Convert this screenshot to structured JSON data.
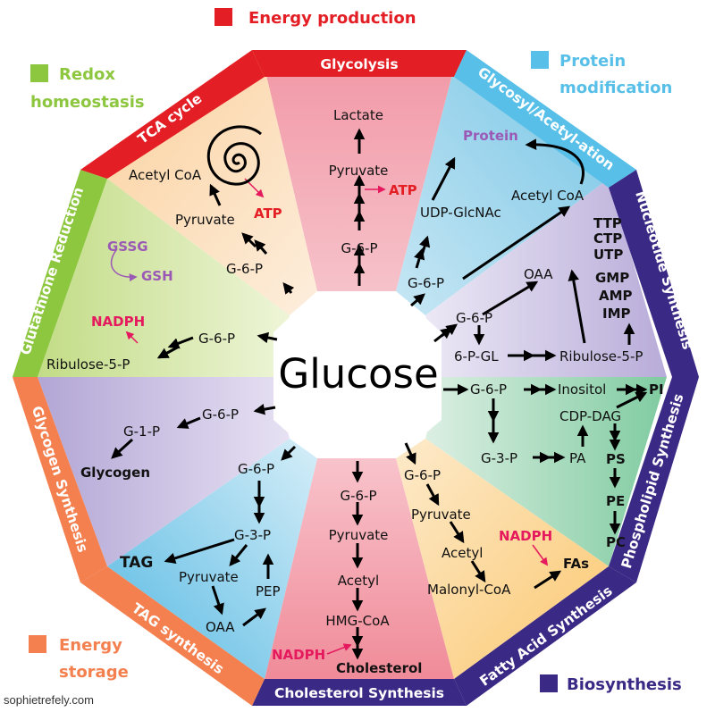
{
  "center": "Glucose",
  "credit": "sophietrefely.com",
  "categories": {
    "energy_production": {
      "label": "Energy production",
      "color": "#e31e24"
    },
    "redox": {
      "line1": "Redox",
      "line2": "homeostasis",
      "color": "#8dc63f"
    },
    "protein_mod": {
      "line1": "Protein",
      "line2": "modification",
      "color": "#58c0e8"
    },
    "energy_storage": {
      "line1": "Energy",
      "line2": "storage",
      "color": "#f47f4f"
    },
    "biosynthesis": {
      "label": "Biosynthesis",
      "color": "#3b2a85"
    }
  },
  "banners": {
    "glycolysis": "Glycolysis",
    "glycosyl": "Glycosyl/Acetyl-ation",
    "nucleotide": "Nucleotide Synthesis",
    "phospholipid": "Phospholipid Synthesis",
    "fatty": "Fatty Acid Synthesis",
    "cholesterol": "Cholesterol Synthesis",
    "tag": "TAG synthesis",
    "glycogen": "Glycogen Synthesis",
    "glutathione": "Glutathione Reduction",
    "tca": "TCA cycle"
  },
  "labels": {
    "gly_lactate": "Lactate",
    "gly_pyruvate": "Pyruvate",
    "gly_atp": "ATP",
    "gly_g6p": "G-6-P",
    "tca_acetyl": "Acetyl CoA",
    "tca_pyruvate": "Pyruvate",
    "tca_atp": "ATP",
    "tca_g6p": "G-6-P",
    "gsh_gssg": "GSSG",
    "gsh_gsh": "GSH",
    "gsh_nadph": "NADPH",
    "gsh_g6p": "G-6-P",
    "gsh_rib": "Ribulose-5-P",
    "glc_g6p": "G-6-P",
    "glc_g1p": "G-1-P",
    "glc_glycogen": "Glycogen",
    "tag_g6p": "G-6-P",
    "tag_g3p": "G-3-P",
    "tag_tag": "TAG",
    "tag_pyruvate": "Pyruvate",
    "tag_pep": "PEP",
    "tag_oaa": "OAA",
    "ch_g6p": "G-6-P",
    "ch_pyruvate": "Pyruvate",
    "ch_acetyl": "Acetyl",
    "ch_hmg": "HMG-CoA",
    "ch_nadph": "NADPH",
    "ch_chol": "Cholesterol",
    "fa_g6p": "G-6-P",
    "fa_pyruvate": "Pyruvate",
    "fa_acetyl": "Acetyl",
    "fa_nadph": "NADPH",
    "fa_malonyl": "Malonyl-CoA",
    "fa_fas": "FAs",
    "pl_g6p": "G-6-P",
    "pl_inositol": "Inositol",
    "pl_pi": "PI",
    "pl_cdpdag": "CDP-DAG",
    "pl_g3p": "G-3-P",
    "pl_pa": "PA",
    "pl_ps": "PS",
    "pl_pe": "PE",
    "pl_pc": "PC",
    "nt_oaa": "OAA",
    "nt_g6p": "G-6-P",
    "nt_6pgl": "6-P-GL",
    "nt_rib": "Ribulose-5-P",
    "nt_ttp": "TTP",
    "nt_ctp": "CTP",
    "nt_utp": "UTP",
    "nt_gmp": "GMP",
    "nt_amp": "AMP",
    "nt_imp": "IMP",
    "pm_protein": "Protein",
    "pm_acetyl": "Acetyl CoA",
    "pm_udp": "UDP-GlcNAc",
    "pm_g6p": "G-6-P"
  }
}
